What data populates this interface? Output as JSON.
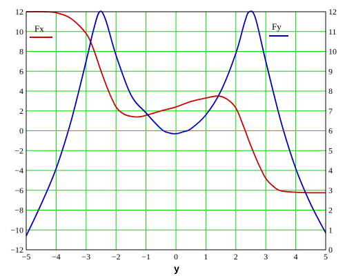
{
  "chart_data": {
    "type": "line",
    "xlabel": "y",
    "xlim": [
      -5,
      5
    ],
    "x_ticks": [
      "−5",
      "−4",
      "−3",
      "−2",
      "−1",
      "0",
      "1",
      "2",
      "3",
      "4",
      "5"
    ],
    "left_axis": {
      "ylim": [
        -12,
        12
      ],
      "ticks": [
        "12",
        "10",
        "8",
        "6",
        "4",
        "2",
        "0",
        "−2",
        "−4",
        "−6",
        "−8",
        "−10",
        "−12"
      ]
    },
    "right_axis": {
      "ylim": [
        0,
        12
      ],
      "ticks": [
        "12",
        "11",
        "10",
        "9",
        "8",
        "7",
        "6",
        "5",
        "4",
        "3",
        "2",
        "1",
        "0"
      ]
    },
    "grid": true,
    "grid_color": "#00dd00",
    "series": [
      {
        "name": "Fx",
        "axis": "left",
        "color": "#cc0000",
        "points": [
          [
            -5,
            12
          ],
          [
            -4.4,
            12
          ],
          [
            -4,
            11.9
          ],
          [
            -3.5,
            11.3
          ],
          [
            -3,
            9.8
          ],
          [
            -2.75,
            8.2
          ],
          [
            -2.5,
            6.0
          ],
          [
            -2.25,
            4.0
          ],
          [
            -2,
            2.4
          ],
          [
            -1.75,
            1.7
          ],
          [
            -1.5,
            1.45
          ],
          [
            -1.25,
            1.4
          ],
          [
            -1,
            1.55
          ],
          [
            -0.5,
            2.0
          ],
          [
            0,
            2.4
          ],
          [
            0.5,
            2.95
          ],
          [
            1,
            3.3
          ],
          [
            1.4,
            3.5
          ],
          [
            1.7,
            3.2
          ],
          [
            2,
            2.3
          ],
          [
            2.25,
            0.5
          ],
          [
            2.5,
            -1.5
          ],
          [
            2.75,
            -3.3
          ],
          [
            3,
            -4.8
          ],
          [
            3.25,
            -5.6
          ],
          [
            3.5,
            -6.05
          ],
          [
            4,
            -6.2
          ],
          [
            4.5,
            -6.25
          ],
          [
            5,
            -6.25
          ]
        ]
      },
      {
        "name": "Fy",
        "axis": "right",
        "color": "#0000bb",
        "points": [
          [
            -5,
            0.7
          ],
          [
            -4.5,
            2.3
          ],
          [
            -4,
            4.1
          ],
          [
            -3.5,
            6.5
          ],
          [
            -3,
            9.5
          ],
          [
            -2.75,
            11.1
          ],
          [
            -2.55,
            12.0
          ],
          [
            -2.35,
            11.6
          ],
          [
            -2,
            9.8
          ],
          [
            -1.5,
            7.8
          ],
          [
            -1,
            6.9
          ],
          [
            -0.5,
            6.1
          ],
          [
            -0.25,
            5.9
          ],
          [
            0,
            5.85
          ],
          [
            0.25,
            5.95
          ],
          [
            0.5,
            6.1
          ],
          [
            1,
            6.8
          ],
          [
            1.5,
            8.0
          ],
          [
            2,
            9.9
          ],
          [
            2.3,
            11.5
          ],
          [
            2.45,
            12.0
          ],
          [
            2.65,
            11.7
          ],
          [
            3,
            9.5
          ],
          [
            3.5,
            6.5
          ],
          [
            4,
            4.1
          ],
          [
            4.5,
            2.3
          ],
          [
            5,
            0.85
          ]
        ]
      }
    ]
  }
}
